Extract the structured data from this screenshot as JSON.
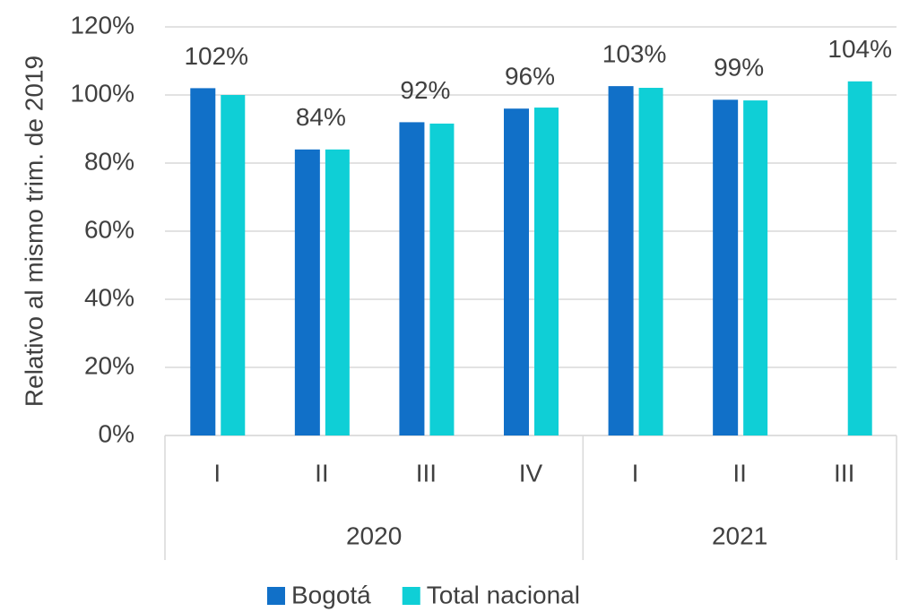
{
  "chart_data": {
    "type": "bar",
    "y_label": "Relativo al mismo trim. de 2019",
    "categories": [
      "I",
      "II",
      "III",
      "IV",
      "I",
      "II",
      "III"
    ],
    "category_groups": [
      "2020",
      "2020",
      "2020",
      "2020",
      "2021",
      "2021",
      "2021"
    ],
    "series": [
      {
        "name": "Bogotá",
        "color": "#1170c8",
        "values": [
          102,
          84,
          92,
          96,
          102.6,
          98.6,
          null
        ],
        "value_labels": [
          "102%",
          "84%",
          "92%",
          "96%",
          "103%",
          "99%",
          null
        ]
      },
      {
        "name": "Total nacional",
        "color": "#0fcfd6",
        "values": [
          100,
          84,
          91.6,
          96.3,
          102.1,
          98.4,
          104
        ],
        "value_labels": [
          null,
          null,
          null,
          null,
          null,
          null,
          "104%"
        ]
      }
    ],
    "ylim": [
      0,
      120
    ],
    "yticks": [
      {
        "value": 0,
        "label": "0%"
      },
      {
        "value": 20,
        "label": "20%"
      },
      {
        "value": 40,
        "label": "40%"
      },
      {
        "value": 60,
        "label": "60%"
      },
      {
        "value": 80,
        "label": "80%"
      },
      {
        "value": 100,
        "label": "100%"
      },
      {
        "value": 120,
        "label": "120%"
      }
    ],
    "grid": true,
    "legend": "bottom"
  }
}
